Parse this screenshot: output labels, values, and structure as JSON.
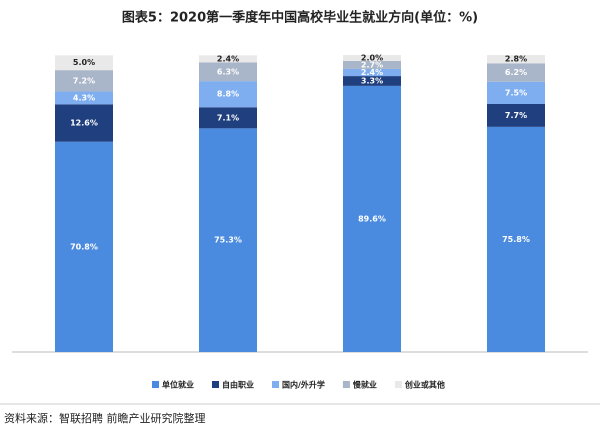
{
  "chart_data": {
    "type": "stacked_bar",
    "title": "图表5：2020第一季度年中国高校毕业生就业方向(单位：%)",
    "source": "资料来源：智联招聘 前瞻产业研究院整理",
    "categories": [
      null,
      null,
      null,
      null
    ],
    "series": [
      {
        "name": "单位就业",
        "color": "#4a8be0",
        "values": [
          70.8,
          75.3,
          89.6,
          75.8
        ],
        "value_labels": [
          "70.8%",
          "75.3%",
          "89.6%",
          "75.8%"
        ]
      },
      {
        "name": "自由职业",
        "color": "#1f3f7e",
        "values": [
          12.6,
          7.1,
          3.3,
          7.7
        ],
        "value_labels": [
          "12.6%",
          "7.1%",
          "3.3%",
          "7.7%"
        ]
      },
      {
        "name": "国内/外升学",
        "color": "#7eaef0",
        "values": [
          4.3,
          8.8,
          2.4,
          7.5
        ],
        "value_labels": [
          "4.3%",
          "8.8%",
          "2.4%",
          "7.5%"
        ]
      },
      {
        "name": "慢就业",
        "color": "#a9b5c8",
        "values": [
          7.2,
          6.3,
          2.7,
          6.2
        ],
        "value_labels": [
          "7.2%",
          "6.3%",
          "2.7%",
          "6.2%"
        ]
      },
      {
        "name": "创业或其他",
        "color": "#e9e9e9",
        "values": [
          5.0,
          2.4,
          2.0,
          2.8
        ],
        "value_labels": [
          "5.0%",
          "2.4%",
          "2.0%",
          "2.8%"
        ]
      }
    ]
  }
}
